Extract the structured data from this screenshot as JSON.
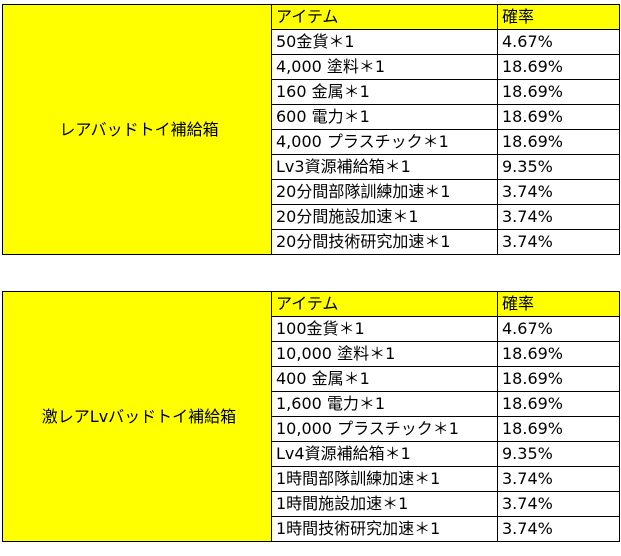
{
  "header": {
    "item": "アイテム",
    "rate": "確率"
  },
  "boxes": [
    {
      "name": "レアバッドトイ補給箱",
      "rows": [
        {
          "item": "50金貨＊1",
          "rate": "4.67%"
        },
        {
          "item": "4,000 塗料＊1",
          "rate": "18.69%"
        },
        {
          "item": "160 金属＊1",
          "rate": "18.69%"
        },
        {
          "item": "600 電力＊1",
          "rate": "18.69%"
        },
        {
          "item": "4,000 プラスチック＊1",
          "rate": "18.69%"
        },
        {
          "item": "Lv3資源補給箱＊1",
          "rate": "9.35%"
        },
        {
          "item": "20分間部隊訓練加速＊1",
          "rate": "3.74%"
        },
        {
          "item": "20分間施設加速＊1",
          "rate": "3.74%"
        },
        {
          "item": "20分間技術研究加速＊1",
          "rate": "3.74%"
        }
      ]
    },
    {
      "name": "激レアLvバッドトイ補給箱",
      "rows": [
        {
          "item": "100金貨＊1",
          "rate": "4.67%"
        },
        {
          "item": "10,000 塗料＊1",
          "rate": "18.69%"
        },
        {
          "item": "400 金属＊1",
          "rate": "18.69%"
        },
        {
          "item": "1,600 電力＊1",
          "rate": "18.69%"
        },
        {
          "item": "10,000 プラスチック＊1",
          "rate": "18.69%"
        },
        {
          "item": "Lv4資源補給箱＊1",
          "rate": "9.35%"
        },
        {
          "item": "1時間部隊訓練加速＊1",
          "rate": "3.74%"
        },
        {
          "item": "1時間施設加速＊1",
          "rate": "3.74%"
        },
        {
          "item": "1時間技術研究加速＊1",
          "rate": "3.74%"
        }
      ]
    }
  ]
}
